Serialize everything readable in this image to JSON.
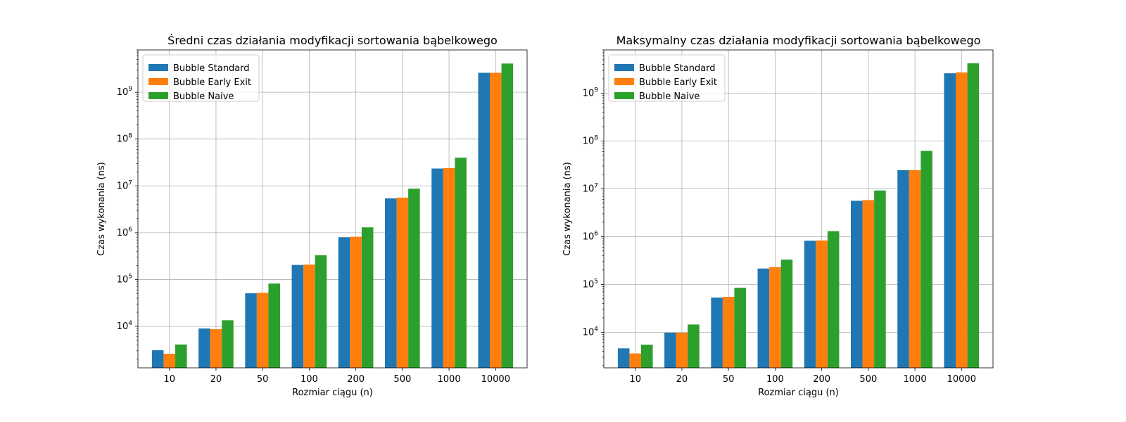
{
  "chart_data": [
    {
      "type": "bar",
      "title": "Średni czas działania modyfikacji sortowania bąbelkowego",
      "xlabel": "Rozmiar ciągu (n)",
      "ylabel": "Czas wykonania (ns)",
      "yscale": "log",
      "ylim": [
        1300,
        8000000000
      ],
      "grid": true,
      "legend_position": "top-left",
      "categories": [
        "10",
        "20",
        "50",
        "100",
        "200",
        "500",
        "1000",
        "10000"
      ],
      "series": [
        {
          "name": "Bubble Standard",
          "color": "#1f77b4",
          "values": [
            3100,
            9000,
            51000,
            205000,
            800000,
            5400000,
            23500000,
            2600000000
          ]
        },
        {
          "name": "Bubble Early Exit",
          "color": "#ff7f0e",
          "values": [
            2600,
            8700,
            52000,
            208000,
            820000,
            5600000,
            24000000,
            2600000000
          ]
        },
        {
          "name": "Bubble Naive",
          "color": "#2ca02c",
          "values": [
            4100,
            13500,
            82000,
            330000,
            1300000,
            8700000,
            40000000,
            4100000000
          ]
        }
      ]
    },
    {
      "type": "bar",
      "title": "Maksymalny czas działania modyfikacji sortowania bąbelkowego",
      "xlabel": "Rozmiar ciągu (n)",
      "ylabel": "Czas wykonania (ns)",
      "yscale": "log",
      "ylim": [
        1800,
        8000000000
      ],
      "grid": true,
      "legend_position": "top-left",
      "categories": [
        "10",
        "20",
        "50",
        "100",
        "200",
        "500",
        "1000",
        "10000"
      ],
      "series": [
        {
          "name": "Bubble Standard",
          "color": "#1f77b4",
          "values": [
            4600,
            9800,
            53000,
            215000,
            820000,
            5600000,
            24500000,
            2600000000
          ]
        },
        {
          "name": "Bubble Early Exit",
          "color": "#ff7f0e",
          "values": [
            3600,
            9800,
            55000,
            230000,
            830000,
            5800000,
            24500000,
            2700000000
          ]
        },
        {
          "name": "Bubble Naive",
          "color": "#2ca02c",
          "values": [
            5500,
            14500,
            85000,
            330000,
            1300000,
            9200000,
            62000000,
            4200000000
          ]
        }
      ]
    }
  ]
}
